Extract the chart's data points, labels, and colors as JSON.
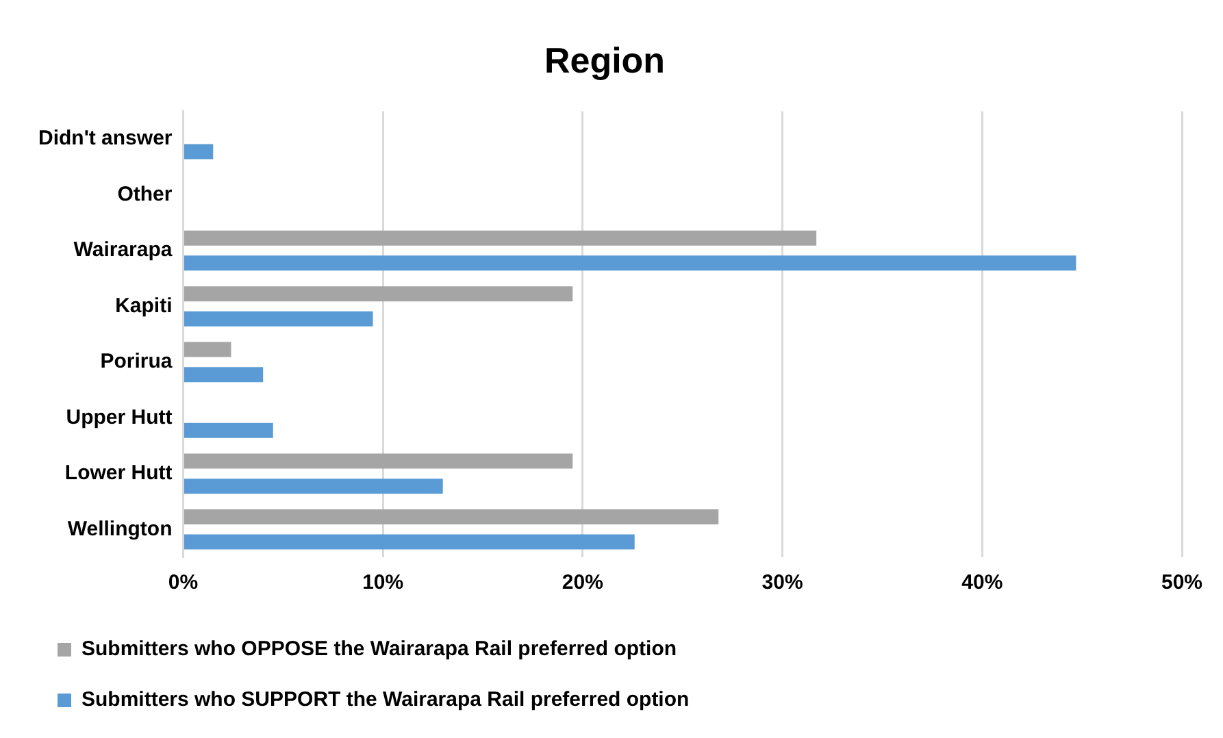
{
  "chart_data": {
    "type": "bar",
    "orientation": "horizontal",
    "title": "Region",
    "categories": [
      "Didn't answer",
      "Other",
      "Wairarapa",
      "Kapiti",
      "Porirua",
      "Upper Hutt",
      "Lower Hutt",
      "Wellington"
    ],
    "series": [
      {
        "name": "Submitters who OPPOSE the Wairarapa Rail preferred option",
        "color": "#a5a5a5",
        "values": [
          null,
          null,
          31.7,
          19.5,
          2.4,
          null,
          19.5,
          26.8
        ]
      },
      {
        "name": "Submitters who SUPPORT the Wairarapa Rail preferred option",
        "color": "#5b9bd5",
        "values": [
          1.5,
          null,
          44.7,
          9.5,
          4.0,
          4.5,
          13.0,
          22.6
        ]
      }
    ],
    "xlim": [
      0,
      50
    ],
    "xticks": [
      {
        "value": 0,
        "label": "0%"
      },
      {
        "value": 10,
        "label": "10%"
      },
      {
        "value": 20,
        "label": "20%"
      },
      {
        "value": 30,
        "label": "30%"
      },
      {
        "value": 40,
        "label": "40%"
      },
      {
        "value": 50,
        "label": "50%"
      }
    ],
    "grid": "x",
    "legend": "bottom"
  }
}
